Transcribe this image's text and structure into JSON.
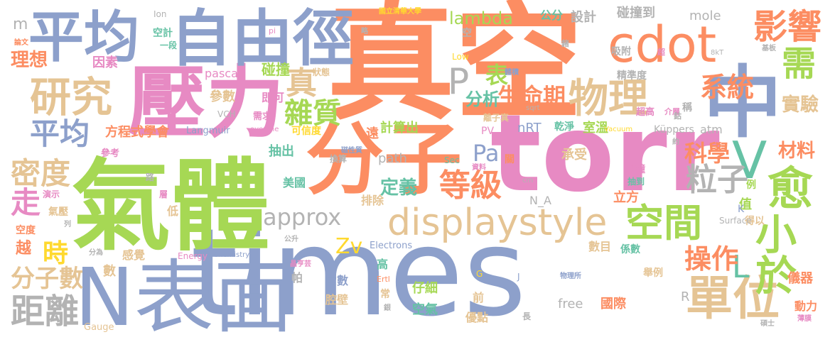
{
  "palette": {
    "orange": "#fc8d62",
    "blue": "#8da0cb",
    "pink": "#e78ac3",
    "green": "#a6d854",
    "yellow": "#ffd92f",
    "tan": "#e5c494",
    "gray": "#b3b3b3",
    "teal": "#66c2a5"
  },
  "words": [
    {
      "text": "真空",
      "color": "orange"
    },
    {
      "text": "times",
      "color": "blue"
    },
    {
      "text": "氣體",
      "color": "green"
    },
    {
      "text": "壓力",
      "color": "pink"
    },
    {
      "text": "torr",
      "color": "pink"
    },
    {
      "text": "分子",
      "color": "orange"
    },
    {
      "text": "N表面",
      "color": "blue"
    },
    {
      "text": "自由徑",
      "color": "blue"
    },
    {
      "text": "平均",
      "color": "blue"
    },
    {
      "text": "cdot",
      "color": "orange"
    },
    {
      "text": "中",
      "color": "blue"
    },
    {
      "text": "displaystyle",
      "color": "tan"
    },
    {
      "text": "單位",
      "color": "tan"
    },
    {
      "text": "物理",
      "color": "tan"
    },
    {
      "text": "研究",
      "color": "tan"
    },
    {
      "text": "空間",
      "color": "green"
    },
    {
      "text": "等級",
      "color": "orange"
    },
    {
      "text": "距離",
      "color": "gray"
    },
    {
      "text": "密度",
      "color": "tan"
    },
    {
      "text": "平均",
      "color": "blue"
    },
    {
      "text": "影響",
      "color": "orange"
    },
    {
      "text": "需",
      "color": "green"
    },
    {
      "text": "愈",
      "color": "green"
    },
    {
      "text": "小於",
      "color": "green"
    },
    {
      "text": "V",
      "color": "teal"
    },
    {
      "text": "P",
      "color": "gray"
    },
    {
      "text": "L",
      "color": "teal"
    },
    {
      "text": "粒子",
      "color": "gray"
    },
    {
      "text": "系統",
      "color": "orange"
    },
    {
      "text": "雜質",
      "color": "green"
    },
    {
      "text": "真",
      "color": "tan"
    },
    {
      "text": "approx",
      "color": "gray"
    },
    {
      "text": "時",
      "color": "yellow"
    },
    {
      "text": "分子數",
      "color": "tan"
    },
    {
      "text": "走",
      "color": "pink"
    },
    {
      "text": "操作",
      "color": "orange"
    },
    {
      "text": "科學",
      "color": "orange"
    },
    {
      "text": "生命期",
      "color": "orange"
    },
    {
      "text": "lambda",
      "color": "green"
    },
    {
      "text": "理想",
      "color": "orange"
    },
    {
      "text": "實驗",
      "color": "tan"
    },
    {
      "text": "材料",
      "color": "orange"
    },
    {
      "text": "表",
      "color": "green"
    },
    {
      "text": "分析",
      "color": "teal"
    },
    {
      "text": "定義",
      "color": "teal"
    },
    {
      "text": "Pa",
      "color": "blue"
    },
    {
      "text": "Zv",
      "color": "yellow"
    },
    {
      "text": "m",
      "color": "gray"
    },
    {
      "text": "設計",
      "color": "gray"
    },
    {
      "text": "碰撞到",
      "color": "gray"
    },
    {
      "text": "mole",
      "color": "gray"
    },
    {
      "text": "公分",
      "color": "teal"
    },
    {
      "text": "碰撞",
      "color": "green"
    },
    {
      "text": "參數",
      "color": "tan"
    },
    {
      "text": "因素",
      "color": "pink"
    },
    {
      "text": "即可",
      "color": "pink"
    },
    {
      "text": "計算出",
      "color": "green"
    },
    {
      "text": "室溫",
      "color": "green"
    },
    {
      "text": "nRT",
      "color": "blue"
    },
    {
      "text": "抽出",
      "color": "teal"
    },
    {
      "text": "遠",
      "color": "orange"
    },
    {
      "text": "方程式學會",
      "color": "orange"
    },
    {
      "text": "Langmuir",
      "color": "blue"
    },
    {
      "text": "path",
      "color": "gray"
    },
    {
      "text": "美國",
      "color": "teal"
    },
    {
      "text": "排除",
      "color": "tan"
    },
    {
      "text": "立方",
      "color": "orange"
    },
    {
      "text": "值",
      "color": "green"
    },
    {
      "text": "atm",
      "color": "gray"
    },
    {
      "text": "N_A",
      "color": "gray"
    },
    {
      "text": "承受",
      "color": "tan"
    },
    {
      "text": "秒鐘",
      "color": "pink"
    },
    {
      "text": "得以",
      "color": "tan"
    },
    {
      "text": "例",
      "color": "green"
    },
    {
      "text": "Electrons",
      "color": "blue"
    },
    {
      "text": "數目",
      "color": "tan"
    },
    {
      "text": "高",
      "color": "teal"
    },
    {
      "text": "常數",
      "color": "blue"
    },
    {
      "text": "仔細",
      "color": "green"
    },
    {
      "text": "腔壁",
      "color": "tan"
    },
    {
      "text": "空氣",
      "color": "teal"
    },
    {
      "text": "前",
      "color": "tan"
    },
    {
      "text": "優點",
      "color": "tan"
    },
    {
      "text": "free",
      "color": "gray"
    },
    {
      "text": "國際",
      "color": "orange"
    },
    {
      "text": "儀器",
      "color": "orange"
    },
    {
      "text": "動力",
      "color": "orange"
    },
    {
      "text": "係數",
      "color": "teal"
    },
    {
      "text": "R",
      "color": "gray"
    },
    {
      "text": "感覺",
      "color": "tan"
    },
    {
      "text": "帕",
      "color": "gray"
    },
    {
      "text": "數",
      "color": "tan"
    },
    {
      "text": "越",
      "color": "orange"
    },
    {
      "text": "空度",
      "color": "orange"
    },
    {
      "text": "氣壓",
      "color": "tan"
    },
    {
      "text": "低",
      "color": "tan"
    },
    {
      "text": "層",
      "color": "pink"
    },
    {
      "text": "路",
      "color": "gray"
    },
    {
      "text": "演示",
      "color": "pink"
    },
    {
      "text": "參考",
      "color": "pink"
    },
    {
      "text": "換算",
      "color": "gray"
    },
    {
      "text": "可信度",
      "color": "yellow"
    },
    {
      "text": "需求",
      "color": "pink"
    },
    {
      "text": "VCH",
      "color": "gray"
    },
    {
      "text": "吸附",
      "color": "gray"
    },
    {
      "text": "精準度",
      "color": "gray"
    },
    {
      "text": "超高",
      "color": "pink"
    },
    {
      "text": "介層",
      "color": "pink"
    },
    {
      "text": "稱",
      "color": "gray"
    },
    {
      "text": "鈷",
      "color": "gray"
    },
    {
      "text": "乾淨",
      "color": "teal"
    },
    {
      "text": "Küppers",
      "color": "gray"
    },
    {
      "text": "K",
      "color": "blue"
    },
    {
      "text": "Surface",
      "color": "gray"
    },
    {
      "text": "Vacuum",
      "color": "yellow"
    },
    {
      "text": "約",
      "color": "gray"
    },
    {
      "text": "抽到",
      "color": "teal"
    },
    {
      "text": "Ion",
      "color": "gray"
    },
    {
      "text": "國立清華大學",
      "color": "yellow"
    },
    {
      "text": "pascal",
      "color": "pink"
    },
    {
      "text": "狀態",
      "color": "tan"
    },
    {
      "text": "空計",
      "color": "teal"
    },
    {
      "text": "一段",
      "color": "teal"
    },
    {
      "text": "pi",
      "color": "pink"
    },
    {
      "text": "略",
      "color": "gray"
    },
    {
      "text": "空",
      "color": "gray"
    },
    {
      "text": "Low",
      "color": "yellow"
    },
    {
      "text": "鍺",
      "color": "gray"
    },
    {
      "text": "超",
      "color": "pink"
    },
    {
      "text": "8kT",
      "color": "gray"
    },
    {
      "text": "基板",
      "color": "gray"
    },
    {
      "text": "體積",
      "color": "blue"
    },
    {
      "text": "sqrt",
      "color": "gray"
    },
    {
      "text": "論文",
      "color": "orange"
    },
    {
      "text": "overline",
      "color": "pink"
    },
    {
      "text": "Chemistry",
      "color": "blue"
    },
    {
      "text": "Energy",
      "color": "pink"
    },
    {
      "text": "分為",
      "color": "gray"
    },
    {
      "text": "列",
      "color": "gray"
    },
    {
      "text": "公升",
      "color": "gray"
    },
    {
      "text": "離子真",
      "color": "tan"
    },
    {
      "text": "PV",
      "color": "pink"
    },
    {
      "text": "Sec",
      "color": "teal"
    },
    {
      "text": "資料",
      "color": "pink"
    },
    {
      "text": "cm",
      "color": "gray"
    },
    {
      "text": "關",
      "color": "orange"
    },
    {
      "text": "磁性質",
      "color": "blue"
    },
    {
      "text": "Ertl",
      "color": "orange"
    },
    {
      "text": "G",
      "color": "yellow"
    },
    {
      "text": "J",
      "color": "blue"
    },
    {
      "text": "常",
      "color": "tan"
    },
    {
      "text": "晶亨芸",
      "color": "pink"
    },
    {
      "text": "銀",
      "color": "gray"
    },
    {
      "text": "物理所",
      "color": "blue"
    },
    {
      "text": "舉例",
      "color": "tan"
    },
    {
      "text": "長",
      "color": "gray"
    },
    {
      "text": "碩士",
      "color": "gray"
    },
    {
      "text": "薄膜",
      "color": "pink"
    },
    {
      "text": "Gauge",
      "color": "tan"
    }
  ]
}
